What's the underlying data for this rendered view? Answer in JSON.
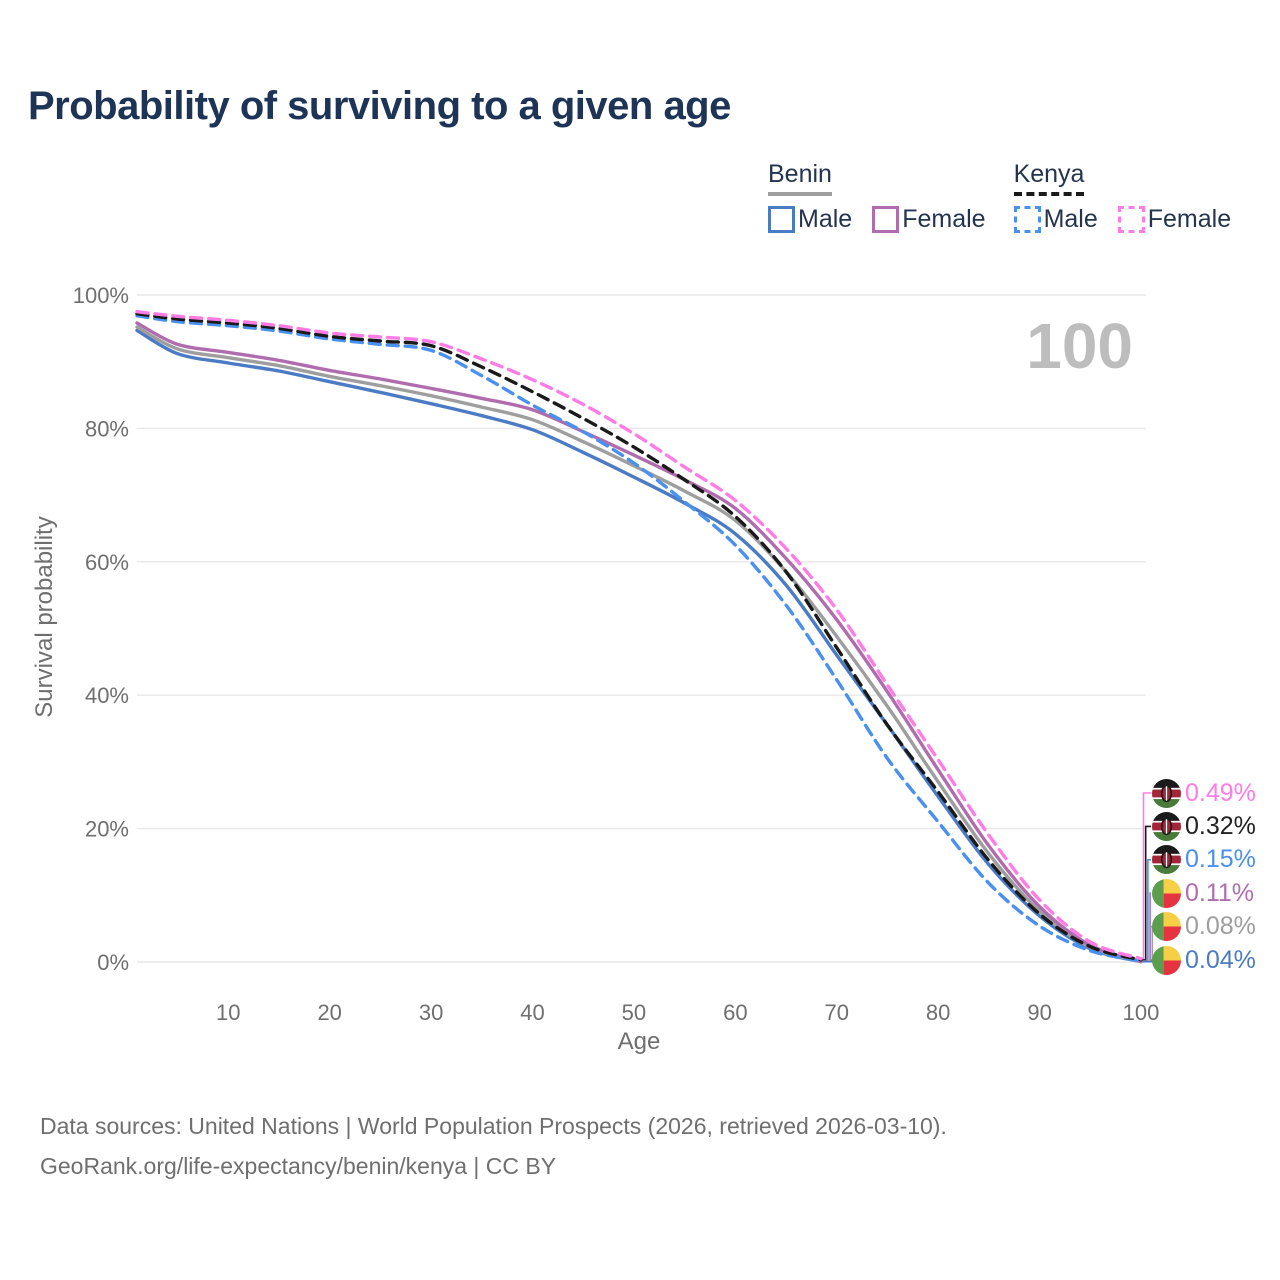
{
  "title": "Probability of surviving to a given age",
  "legend": {
    "groups": [
      {
        "name": "Benin",
        "line_style": "solid",
        "underline_color": "#9e9e9e",
        "items": [
          {
            "label": "Male",
            "color": "#4b7bc4"
          },
          {
            "label": "Female",
            "color": "#b06dae"
          }
        ]
      },
      {
        "name": "Kenya",
        "line_style": "dashed",
        "underline_color": "#1a1a1a",
        "items": [
          {
            "label": "Male",
            "color": "#4a90ee"
          },
          {
            "label": "Female",
            "color": "#ff7ce5"
          }
        ]
      }
    ]
  },
  "watermark": "100",
  "footer": {
    "line1": "Data sources: United Nations | World Population Prospects (2026, retrieved 2026-03-10).",
    "line2": "GeoRank.org/life-expectancy/benin/kenya | CC BY"
  },
  "chart_data": {
    "type": "line",
    "title": "Probability of surviving to a given age",
    "xlabel": "Age",
    "ylabel": "Survival probability",
    "xlim": [
      1,
      100
    ],
    "ylim": [
      0,
      100
    ],
    "grid": true,
    "legend_position": "top-right",
    "x_ticks": [
      10,
      20,
      30,
      40,
      50,
      60,
      70,
      80,
      90,
      100
    ],
    "y_ticks": [
      {
        "label": "0%",
        "value": 0
      },
      {
        "label": "20%",
        "value": 20
      },
      {
        "label": "40%",
        "value": 40
      },
      {
        "label": "60%",
        "value": 60
      },
      {
        "label": "80%",
        "value": 80
      },
      {
        "label": "100%",
        "value": 100
      }
    ],
    "ages": [
      1,
      5,
      10,
      15,
      20,
      25,
      30,
      35,
      40,
      45,
      50,
      55,
      60,
      65,
      70,
      75,
      80,
      85,
      90,
      95,
      100
    ],
    "series": [
      {
        "name": "Kenya Female",
        "country": "Kenya",
        "sex": "Female",
        "color": "#ff7ce5",
        "dashed": true,
        "flag": "kenya",
        "end_label": "0.49%",
        "end_label_color": "#ff7ce5",
        "values": [
          97.5,
          96.8,
          96.2,
          95.4,
          94.3,
          93.7,
          93.0,
          90.4,
          87.3,
          83.6,
          79.2,
          74.2,
          69.2,
          62.0,
          52.8,
          41.5,
          30.3,
          19.0,
          9.3,
          3.0,
          0.49
        ]
      },
      {
        "name": "Kenya",
        "country": "Kenya",
        "sex": "Both",
        "color": "#1a1a1a",
        "dashed": true,
        "flag": "kenya",
        "end_label": "0.32%",
        "end_label_color": "#222222",
        "values": [
          97.2,
          96.4,
          95.8,
          95.0,
          93.8,
          93.1,
          92.4,
          89.2,
          85.5,
          81.5,
          77.2,
          72.3,
          66.8,
          58.5,
          47.1,
          35.5,
          25.5,
          15.2,
          7.2,
          2.3,
          0.32
        ]
      },
      {
        "name": "Kenya Male",
        "country": "Kenya",
        "sex": "Male",
        "color": "#4a90ee",
        "dashed": true,
        "flag": "kenya",
        "end_label": "0.15%",
        "end_label_color": "#4a90ee",
        "values": [
          96.9,
          96.0,
          95.4,
          94.6,
          93.4,
          92.6,
          91.7,
          87.9,
          83.5,
          79.5,
          74.8,
          69.0,
          62.5,
          53.5,
          42.3,
          30.5,
          21.0,
          11.8,
          5.4,
          1.7,
          0.15
        ]
      },
      {
        "name": "Benin Female",
        "country": "Benin",
        "sex": "Female",
        "color": "#b06dae",
        "dashed": false,
        "flag": "benin",
        "end_label": "0.11%",
        "end_label_color": "#b06dae",
        "values": [
          95.8,
          92.6,
          91.4,
          90.2,
          88.7,
          87.4,
          86.0,
          84.5,
          82.8,
          79.5,
          76.0,
          72.3,
          68.0,
          60.5,
          51.3,
          40.5,
          28.8,
          17.4,
          8.3,
          2.5,
          0.11
        ]
      },
      {
        "name": "Benin",
        "country": "Benin",
        "sex": "Both",
        "color": "#9e9e9e",
        "dashed": false,
        "flag": "benin",
        "end_label": "0.08%",
        "end_label_color": "#9e9e9e",
        "values": [
          95.2,
          91.9,
          90.6,
          89.4,
          87.8,
          86.4,
          84.9,
          83.2,
          81.3,
          78.0,
          74.4,
          70.6,
          66.2,
          58.5,
          48.8,
          38.3,
          27.0,
          16.2,
          7.6,
          2.2,
          0.08
        ]
      },
      {
        "name": "Benin Male",
        "country": "Benin",
        "sex": "Male",
        "color": "#4b7bc4",
        "dashed": false,
        "flag": "benin",
        "end_label": "0.04%",
        "end_label_color": "#4b7bc4",
        "values": [
          94.7,
          91.2,
          89.8,
          88.6,
          87.0,
          85.4,
          83.7,
          81.9,
          79.8,
          76.4,
          72.7,
          68.8,
          64.2,
          56.5,
          46.0,
          35.5,
          24.8,
          14.6,
          6.9,
          2.0,
          0.04
        ]
      }
    ]
  }
}
